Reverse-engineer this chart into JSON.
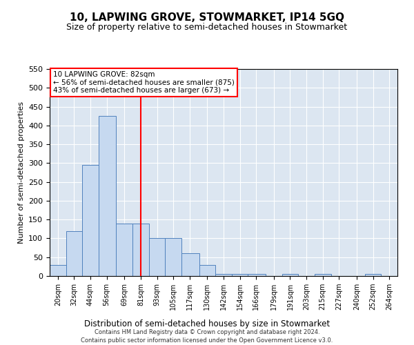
{
  "title": "10, LAPWING GROVE, STOWMARKET, IP14 5GQ",
  "subtitle": "Size of property relative to semi-detached houses in Stowmarket",
  "xlabel": "Distribution of semi-detached houses by size in Stowmarket",
  "ylabel": "Number of semi-detached properties",
  "footer_line1": "Contains HM Land Registry data © Crown copyright and database right 2024.",
  "footer_line2": "Contains public sector information licensed under the Open Government Licence v3.0.",
  "annotation_title": "10 LAPWING GROVE: 82sqm",
  "annotation_line2": "← 56% of semi-detached houses are smaller (875)",
  "annotation_line3": "43% of semi-detached houses are larger (673) →",
  "tick_labels": [
    "20sqm",
    "32sqm",
    "44sqm",
    "56sqm",
    "69sqm",
    "81sqm",
    "93sqm",
    "105sqm",
    "117sqm",
    "130sqm",
    "142sqm",
    "154sqm",
    "166sqm",
    "179sqm",
    "191sqm",
    "203sqm",
    "215sqm",
    "227sqm",
    "240sqm",
    "252sqm",
    "264sqm"
  ],
  "tick_positions": [
    20,
    32,
    44,
    56,
    69,
    81,
    93,
    105,
    117,
    130,
    142,
    154,
    166,
    179,
    191,
    203,
    215,
    227,
    240,
    252,
    264
  ],
  "bar_lefts": [
    14,
    26,
    38,
    50,
    63,
    75,
    87,
    99,
    111,
    124,
    136,
    148,
    160,
    173,
    185,
    197,
    209,
    221,
    234,
    246
  ],
  "bar_rights": [
    26,
    38,
    50,
    63,
    75,
    87,
    99,
    111,
    124,
    136,
    148,
    160,
    173,
    185,
    197,
    209,
    221,
    234,
    246,
    258
  ],
  "bar_heights": [
    30,
    120,
    295,
    425,
    140,
    140,
    100,
    100,
    60,
    30,
    5,
    5,
    5,
    0,
    5,
    0,
    5,
    0,
    0,
    5
  ],
  "bar_color": "#c6d9f0",
  "bar_edge_color": "#4f81bd",
  "redline_x": 81,
  "xlim": [
    14,
    270
  ],
  "ylim": [
    0,
    550
  ],
  "yticks": [
    0,
    50,
    100,
    150,
    200,
    250,
    300,
    350,
    400,
    450,
    500,
    550
  ],
  "plot_bg": "#dce6f1",
  "grid_color": "#ffffff",
  "title_fontsize": 11,
  "subtitle_fontsize": 9,
  "ylabel_fontsize": 8,
  "xlabel_fontsize": 8.5,
  "xtick_fontsize": 7,
  "ytick_fontsize": 8,
  "annot_fontsize": 7.5,
  "footer_fontsize": 6
}
